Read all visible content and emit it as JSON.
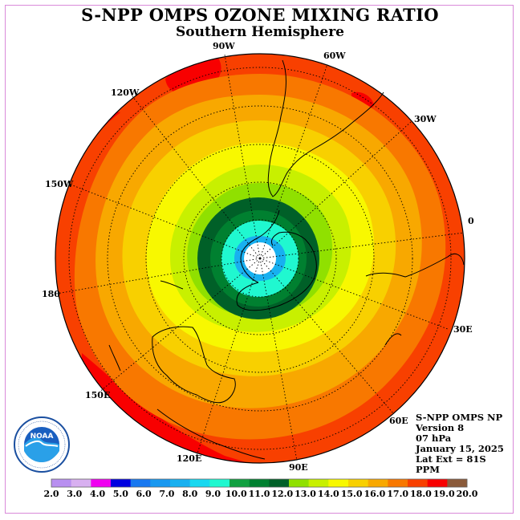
{
  "title": "S-NPP OMPS OZONE MIXING RATIO",
  "subtitle": "Southern Hemisphere",
  "longitude_labels": [
    "0",
    "30E",
    "60E",
    "90E",
    "120E",
    "150E",
    "180",
    "150W",
    "120W",
    "90W",
    "60W",
    "30W"
  ],
  "info": {
    "instrument": "S-NPP OMPS NP",
    "version": "Version 8",
    "pressure": "07 hPa",
    "date": "January 15, 2025",
    "lat_ext": "Lat Ext = 81S",
    "units": "PPM"
  },
  "logo": {
    "text": "NOAA",
    "ring_text": "NATIONAL OCEANIC AND ATMOSPHERIC ADMINISTRATION · U.S. DEPARTMENT OF COMMERCE",
    "icon": "noaa-logo"
  },
  "colorbar": {
    "labels": [
      "2.0",
      "3.0",
      "4.0",
      "5.0",
      "6.0",
      "7.0",
      "8.0",
      "9.0",
      "10.0",
      "11.0",
      "12.0",
      "13.0",
      "14.0",
      "15.0",
      "16.0",
      "17.0",
      "18.0",
      "19.0",
      "20.0"
    ],
    "colors": [
      "#b88ff0",
      "#d8b0f0",
      "#f000f0",
      "#0000e0",
      "#1878f0",
      "#1898f0",
      "#18b0f0",
      "#18d8f0",
      "#20f8d0",
      "#10a040",
      "#008030",
      "#006028",
      "#90e000",
      "#c8f000",
      "#f8f800",
      "#f8d000",
      "#f8a800",
      "#f87800",
      "#f84000",
      "#f80000",
      "#8a5a3a"
    ],
    "min": 2.0,
    "max": 20.0,
    "step": 1.0
  },
  "map_data": {
    "projection": "south-polar-stereographic",
    "lat_extent": -81,
    "contour_bands_ppm": [
      12.0,
      11.0,
      10.0,
      9.0,
      13.0,
      14.0,
      15.0,
      16.0,
      17.0,
      18.0,
      19.0
    ]
  }
}
